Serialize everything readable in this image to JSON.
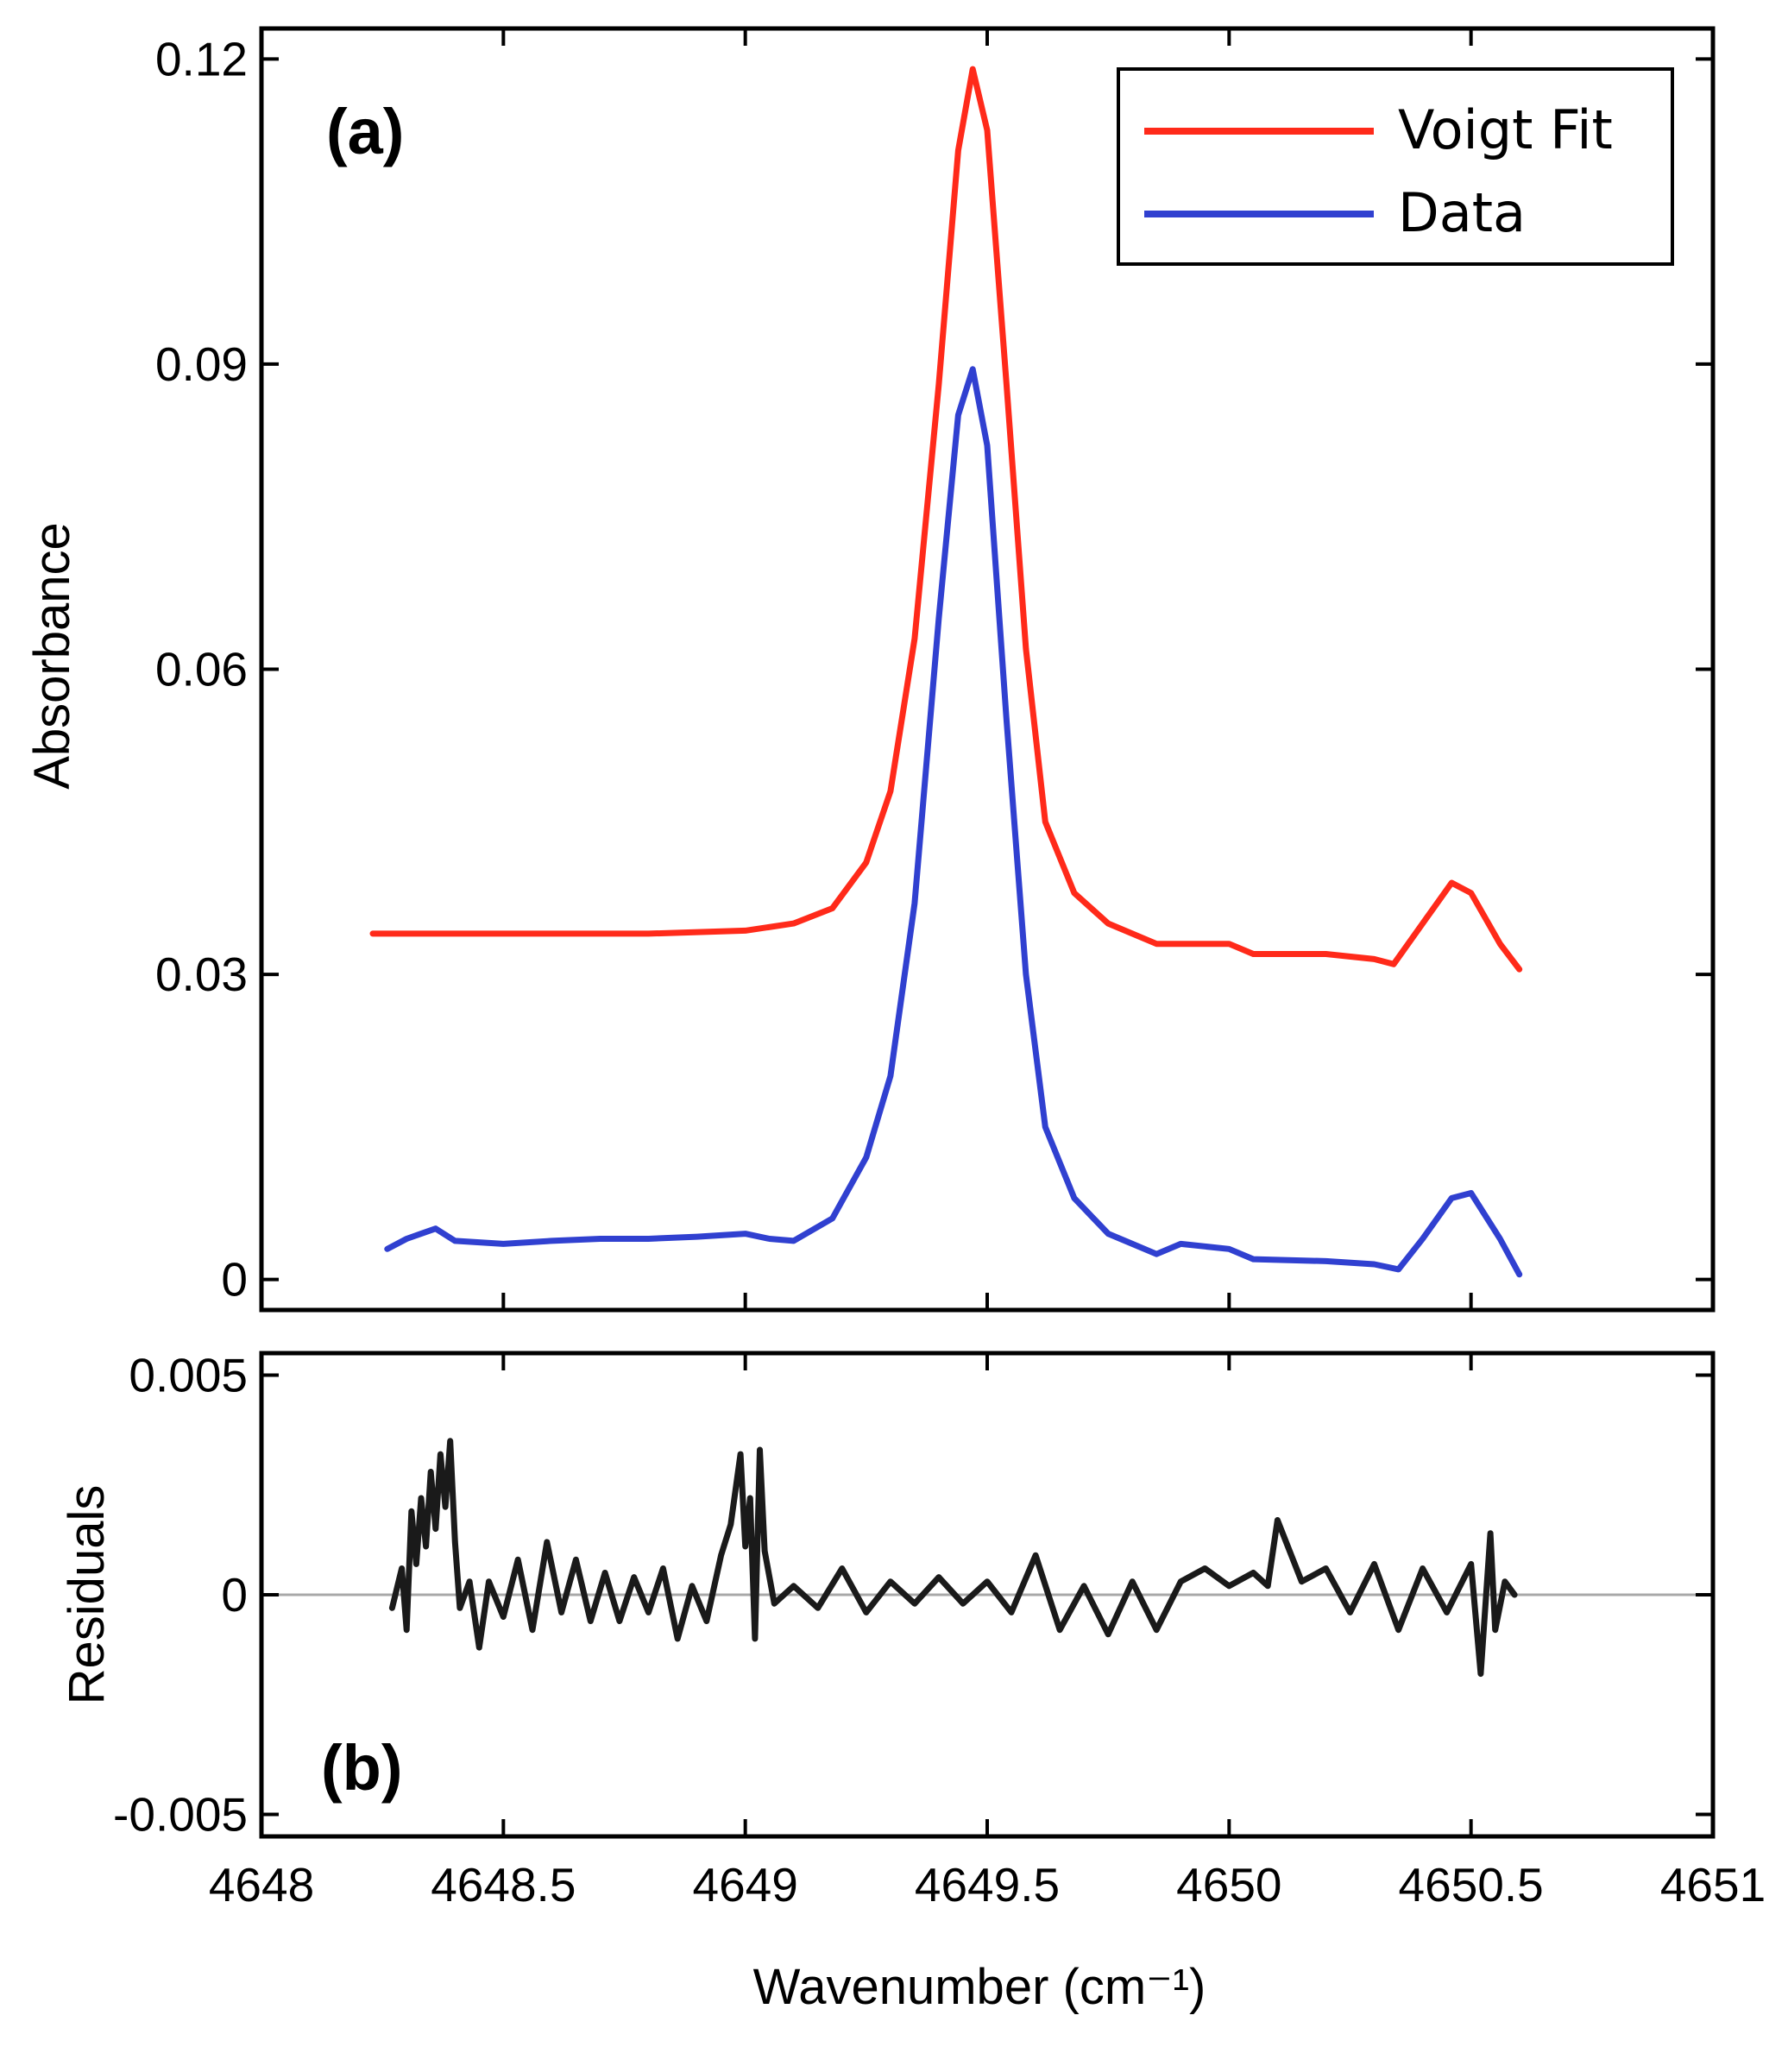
{
  "chart_data": [
    {
      "panel": "a",
      "type": "line",
      "panel_label": "(a)",
      "xlabel": "",
      "ylabel": "Absorbance",
      "xlim": [
        4648,
        4651
      ],
      "ylim": [
        -0.003,
        0.123
      ],
      "xticks": [
        4648,
        4648.5,
        4649,
        4649.5,
        4650,
        4650.5,
        4651
      ],
      "yticks": [
        0,
        0.03,
        0.06,
        0.09,
        0.12
      ],
      "ytick_labels": [
        "0",
        "0.03",
        "0.06",
        "0.09",
        "0.12"
      ],
      "legend": {
        "position": "top-right",
        "entries": [
          "Voigt Fit",
          "Data"
        ]
      },
      "series": [
        {
          "name": "Voigt Fit",
          "color": "#ff2a1a",
          "x": [
            4648.23,
            4648.5,
            4648.8,
            4649.0,
            4649.1,
            4649.18,
            4649.25,
            4649.3,
            4649.35,
            4649.4,
            4649.44,
            4649.47,
            4649.5,
            4649.54,
            4649.58,
            4649.62,
            4649.68,
            4649.75,
            4649.85,
            4650.0,
            4650.05,
            4650.2,
            4650.3,
            4650.34,
            4650.4,
            4650.46,
            4650.5,
            4650.56,
            4650.6
          ],
          "y": [
            0.034,
            0.034,
            0.034,
            0.0343,
            0.035,
            0.0365,
            0.041,
            0.048,
            0.063,
            0.088,
            0.111,
            0.119,
            0.113,
            0.088,
            0.062,
            0.045,
            0.038,
            0.035,
            0.033,
            0.033,
            0.032,
            0.032,
            0.0315,
            0.031,
            0.035,
            0.039,
            0.038,
            0.033,
            0.0305
          ]
        },
        {
          "name": "Data",
          "color": "#3040d0",
          "x": [
            4648.26,
            4648.3,
            4648.33,
            4648.36,
            4648.4,
            4648.5,
            4648.6,
            4648.7,
            4648.8,
            4648.9,
            4649.0,
            4649.05,
            4649.1,
            4649.18,
            4649.25,
            4649.3,
            4649.35,
            4649.4,
            4649.44,
            4649.47,
            4649.5,
            4649.54,
            4649.58,
            4649.62,
            4649.68,
            4649.75,
            4649.8,
            4649.85,
            4649.9,
            4650.0,
            4650.05,
            4650.2,
            4650.3,
            4650.35,
            4650.4,
            4650.46,
            4650.5,
            4650.56,
            4650.6
          ],
          "y": [
            0.003,
            0.004,
            0.0045,
            0.005,
            0.0038,
            0.0035,
            0.0038,
            0.004,
            0.004,
            0.0042,
            0.0045,
            0.004,
            0.0038,
            0.006,
            0.012,
            0.02,
            0.037,
            0.065,
            0.085,
            0.0895,
            0.082,
            0.055,
            0.03,
            0.015,
            0.008,
            0.0045,
            0.0035,
            0.0025,
            0.0035,
            0.003,
            0.002,
            0.0018,
            0.0015,
            0.001,
            0.004,
            0.008,
            0.0085,
            0.004,
            0.0005
          ]
        }
      ]
    },
    {
      "panel": "b",
      "type": "line",
      "panel_label": "(b)",
      "xlabel": "Wavenumber (cm⁻¹)",
      "ylabel": "Residuals",
      "xlim": [
        4648,
        4651
      ],
      "ylim": [
        -0.0055,
        0.0055
      ],
      "xticks": [
        4648,
        4648.5,
        4649,
        4649.5,
        4650,
        4650.5,
        4651
      ],
      "xtick_labels": [
        "4648",
        "4648.5",
        "4649",
        "4649.5",
        "4650",
        "4650.5",
        "4651"
      ],
      "yticks": [
        -0.005,
        0,
        0.005
      ],
      "ytick_labels": [
        "-0.005",
        "0",
        "0.005"
      ],
      "zero_line": true,
      "series": [
        {
          "name": "Residuals",
          "color": "#1a1a1a",
          "x": [
            4648.27,
            4648.29,
            4648.3,
            4648.31,
            4648.32,
            4648.33,
            4648.34,
            4648.35,
            4648.36,
            4648.37,
            4648.38,
            4648.39,
            4648.4,
            4648.41,
            4648.43,
            4648.45,
            4648.47,
            4648.5,
            4648.53,
            4648.56,
            4648.59,
            4648.62,
            4648.65,
            4648.68,
            4648.71,
            4648.74,
            4648.77,
            4648.8,
            4648.83,
            4648.86,
            4648.89,
            4648.92,
            4648.95,
            4648.97,
            4648.99,
            4649.0,
            4649.01,
            4649.02,
            4649.03,
            4649.04,
            4649.06,
            4649.1,
            4649.15,
            4649.2,
            4649.25,
            4649.3,
            4649.35,
            4649.4,
            4649.45,
            4649.5,
            4649.55,
            4649.6,
            4649.65,
            4649.7,
            4649.75,
            4649.8,
            4649.85,
            4649.9,
            4649.95,
            4650.0,
            4650.05,
            4650.08,
            4650.1,
            4650.15,
            4650.2,
            4650.25,
            4650.3,
            4650.35,
            4650.4,
            4650.45,
            4650.5,
            4650.52,
            4650.54,
            4650.55,
            4650.57,
            4650.59
          ],
          "y": [
            -0.0003,
            0.0006,
            -0.0008,
            0.0019,
            0.0007,
            0.0022,
            0.0011,
            0.0028,
            0.0015,
            0.0032,
            0.002,
            0.0035,
            0.0012,
            -0.0003,
            0.0003,
            -0.0012,
            0.0003,
            -0.0005,
            0.0008,
            -0.0008,
            0.0012,
            -0.0004,
            0.0008,
            -0.0006,
            0.0005,
            -0.0006,
            0.0004,
            -0.0004,
            0.0006,
            -0.001,
            0.0002,
            -0.0006,
            0.0009,
            0.0016,
            0.0032,
            0.0011,
            0.0022,
            -0.001,
            0.0033,
            0.001,
            -0.0002,
            0.0002,
            -0.0003,
            0.0006,
            -0.0004,
            0.0003,
            -0.0002,
            0.0004,
            -0.0002,
            0.0003,
            -0.0004,
            0.0009,
            -0.0008,
            0.0002,
            -0.0009,
            0.0003,
            -0.0008,
            0.0003,
            0.0006,
            0.0002,
            0.0005,
            0.0002,
            0.0017,
            0.0003,
            0.0006,
            -0.0004,
            0.0007,
            -0.0008,
            0.0006,
            -0.0004,
            0.0007,
            -0.0018,
            0.0014,
            -0.0008,
            0.0003,
            0
          ]
        }
      ]
    }
  ]
}
